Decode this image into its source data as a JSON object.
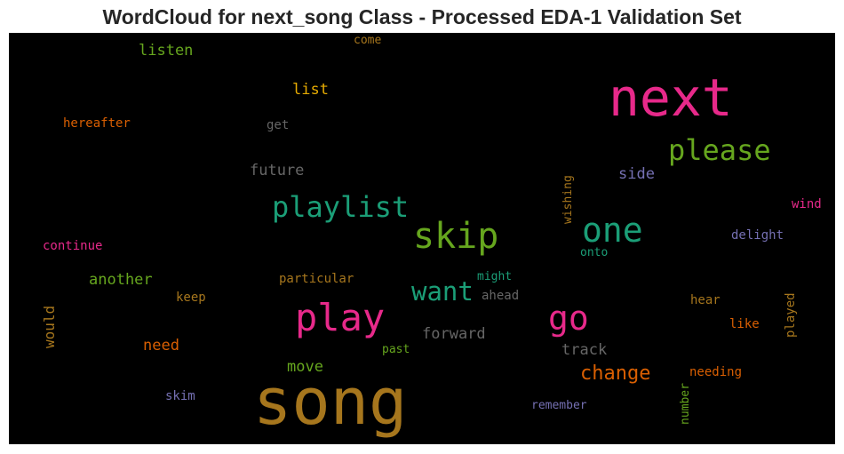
{
  "title": "WordCloud for next_song Class - Processed EDA-1 Validation Set",
  "chart_data": {
    "type": "wordcloud",
    "background": "#000000",
    "words": [
      {
        "text": "song",
        "color": "#a6761d",
        "vertical": false
      },
      {
        "text": "next",
        "color": "#e7298a",
        "vertical": false
      },
      {
        "text": "skip",
        "color": "#66a61e",
        "vertical": false
      },
      {
        "text": "play",
        "color": "#e7298a",
        "vertical": false
      },
      {
        "text": "one",
        "color": "#1b9e77",
        "vertical": false
      },
      {
        "text": "playlist",
        "color": "#1b9e77",
        "vertical": false
      },
      {
        "text": "please",
        "color": "#66a61e",
        "vertical": false
      },
      {
        "text": "go",
        "color": "#e7298a",
        "vertical": false
      },
      {
        "text": "want",
        "color": "#1b9e77",
        "vertical": false
      },
      {
        "text": "change",
        "color": "#d95f02",
        "vertical": false
      },
      {
        "text": "future",
        "color": "#666666",
        "vertical": false
      },
      {
        "text": "forward",
        "color": "#666666",
        "vertical": false
      },
      {
        "text": "track",
        "color": "#666666",
        "vertical": false
      },
      {
        "text": "another",
        "color": "#66a61e",
        "vertical": false
      },
      {
        "text": "need",
        "color": "#d95f02",
        "vertical": false
      },
      {
        "text": "move",
        "color": "#66a61e",
        "vertical": false
      },
      {
        "text": "listen",
        "color": "#66a61e",
        "vertical": false
      },
      {
        "text": "list",
        "color": "#e6ab02",
        "vertical": false
      },
      {
        "text": "side",
        "color": "#7570b3",
        "vertical": false
      },
      {
        "text": "would",
        "color": "#a6761d",
        "vertical": true
      },
      {
        "text": "hereafter",
        "color": "#d95f02",
        "vertical": false
      },
      {
        "text": "get",
        "color": "#666666",
        "vertical": false
      },
      {
        "text": "come",
        "color": "#a6761d",
        "vertical": false
      },
      {
        "text": "wishing",
        "color": "#a6761d",
        "vertical": true
      },
      {
        "text": "wind",
        "color": "#e7298a",
        "vertical": false
      },
      {
        "text": "delight",
        "color": "#7570b3",
        "vertical": false
      },
      {
        "text": "continue",
        "color": "#e7298a",
        "vertical": false
      },
      {
        "text": "onto",
        "color": "#1b9e77",
        "vertical": false
      },
      {
        "text": "particular",
        "color": "#a6761d",
        "vertical": false
      },
      {
        "text": "might",
        "color": "#1b9e77",
        "vertical": false
      },
      {
        "text": "ahead",
        "color": "#666666",
        "vertical": false
      },
      {
        "text": "keep",
        "color": "#a6761d",
        "vertical": false
      },
      {
        "text": "hear",
        "color": "#a6761d",
        "vertical": false
      },
      {
        "text": "played",
        "color": "#a6761d",
        "vertical": true
      },
      {
        "text": "like",
        "color": "#d95f02",
        "vertical": false
      },
      {
        "text": "past",
        "color": "#66a61e",
        "vertical": false
      },
      {
        "text": "needing",
        "color": "#d95f02",
        "vertical": false
      },
      {
        "text": "skim",
        "color": "#7570b3",
        "vertical": false
      },
      {
        "text": "remember",
        "color": "#7570b3",
        "vertical": false
      },
      {
        "text": "number",
        "color": "#66a61e",
        "vertical": true
      }
    ]
  }
}
